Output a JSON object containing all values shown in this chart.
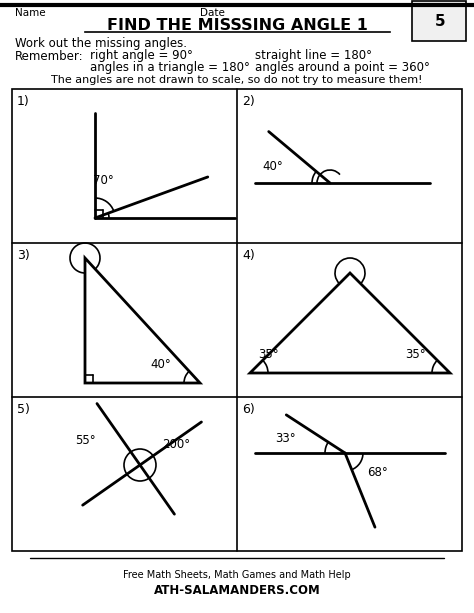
{
  "title": "FIND THE MISSSING ANGLE 1",
  "name_label": "Name",
  "date_label": "Date",
  "work_out": "Work out the missing angles.",
  "remember_line1_left": "Remember:",
  "remember_line1_right_a": "right angle = 90°",
  "remember_line1_right_b": "straight line = 180°",
  "remember_line2_a": "angles in a triangle = 180°",
  "remember_line2_b": "angles around a point = 360°",
  "warning": "The angles are not drawn to scale, so do not try to measure them!",
  "bg_color": "#ffffff",
  "text_color": "#000000"
}
